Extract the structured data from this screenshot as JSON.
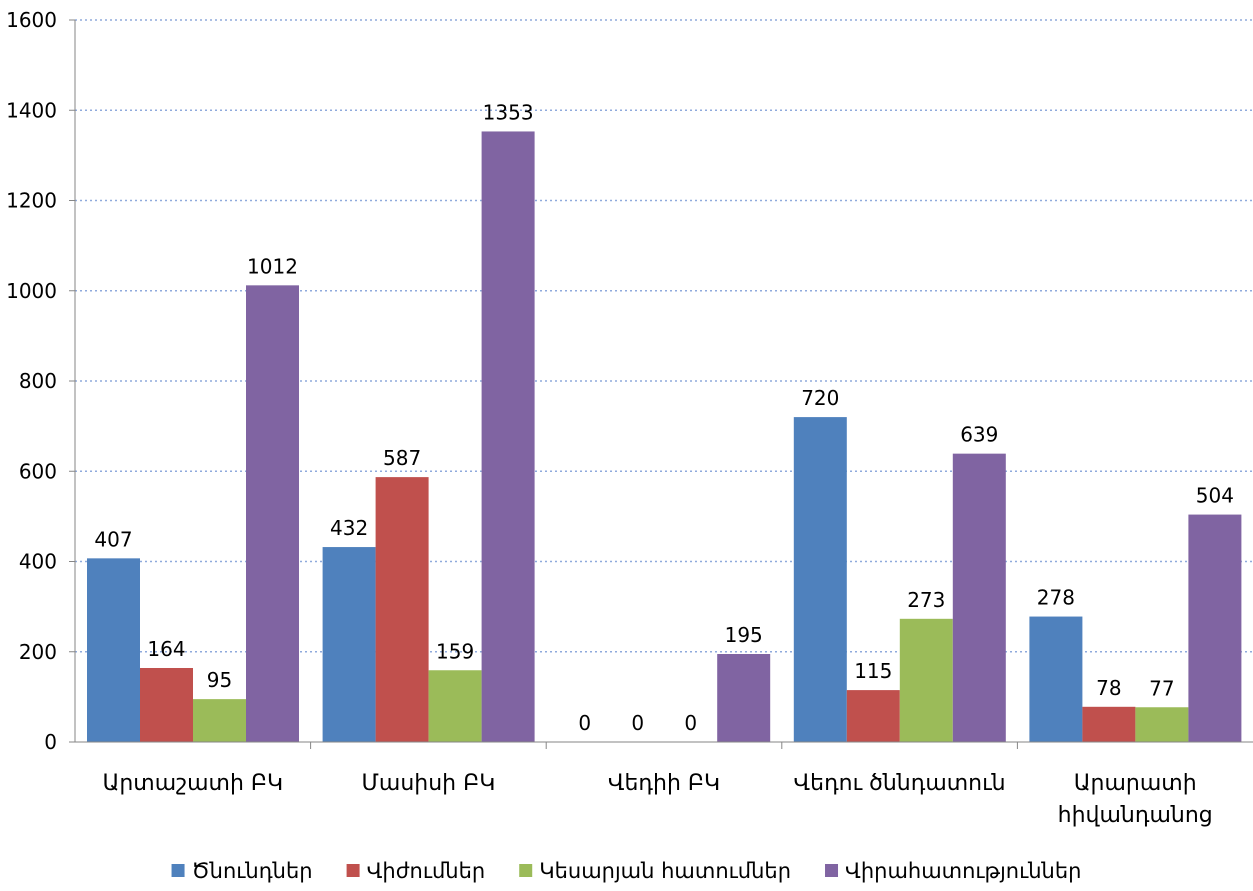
{
  "chart_data": {
    "type": "bar",
    "title": "",
    "xlabel": "",
    "ylabel": "",
    "ylim": [
      0,
      1600
    ],
    "yticks": [
      0,
      200,
      400,
      600,
      800,
      1000,
      1200,
      1400,
      1600
    ],
    "grid": true,
    "legend_position": "bottom",
    "categories": [
      [
        "Արտաշատի ԲԿ"
      ],
      [
        "Մասիսի ԲԿ"
      ],
      [
        "Վեդիի ԲԿ"
      ],
      [
        "Վեդու ծննդատուն"
      ],
      [
        "Արարատի",
        "հիվանդանոց"
      ]
    ],
    "series": [
      {
        "name": "Ծնունդներ",
        "color": "#4F81BD",
        "values": [
          407,
          432,
          0,
          720,
          278
        ]
      },
      {
        "name": "Վիժումներ",
        "color": "#C0504D",
        "values": [
          164,
          587,
          0,
          115,
          78
        ]
      },
      {
        "name": "Կեսարյան հատումներ",
        "color": "#9BBB59",
        "values": [
          95,
          159,
          0,
          273,
          77
        ]
      },
      {
        "name": "Վիրահատություններ",
        "color": "#8064A2",
        "values": [
          1012,
          1353,
          195,
          639,
          504
        ]
      }
    ]
  }
}
